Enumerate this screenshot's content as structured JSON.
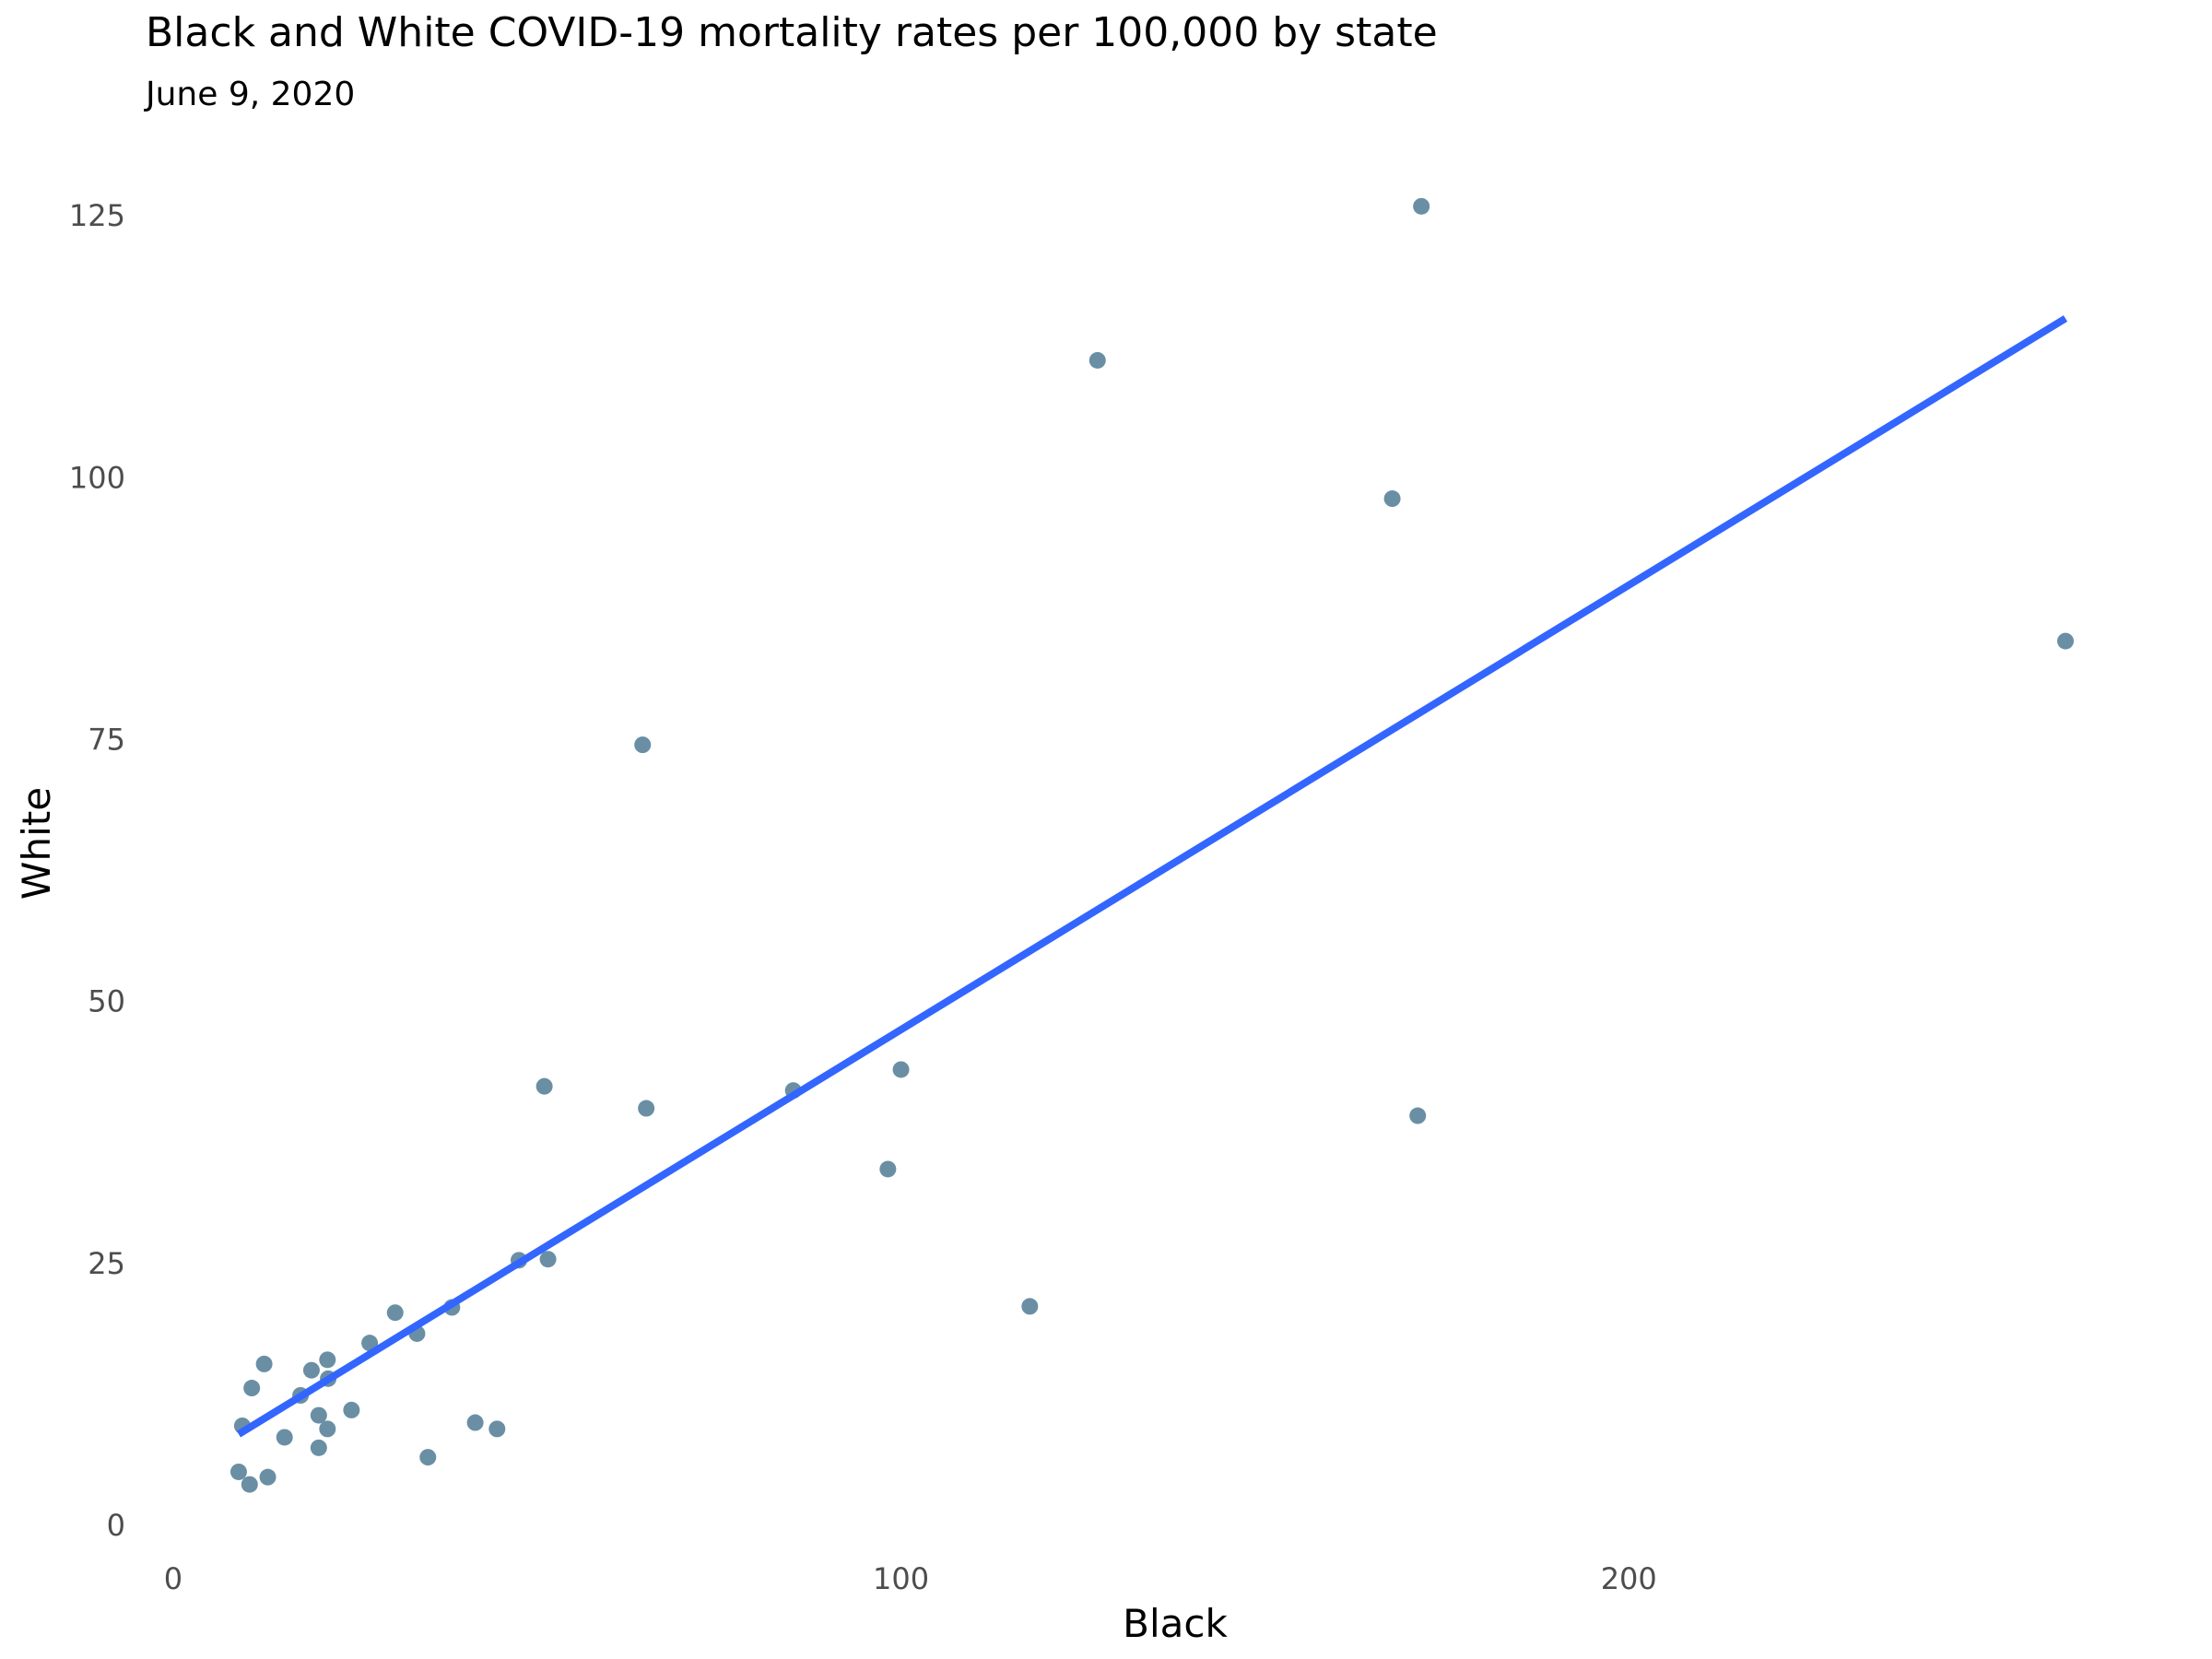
{
  "chart_data": {
    "type": "scatter",
    "title": "Black and White COVID-19 mortality rates per 100,000 by state",
    "subtitle": "June 9, 2020",
    "xlabel": "Black",
    "ylabel": "White",
    "xlim": [
      -1,
      270
    ],
    "ylim": [
      -1.5,
      128
    ],
    "x_ticks": [
      0,
      100,
      200
    ],
    "y_ticks": [
      0,
      25,
      50,
      75,
      100,
      125
    ],
    "grid": false,
    "point_color": "#6a8fa5",
    "trend_color": "#3366ff",
    "trend_line": {
      "x": [
        9,
        260
      ],
      "y": [
        8.7,
        115.2
      ]
    },
    "points": [
      {
        "x": 9,
        "y": 5.1
      },
      {
        "x": 10.5,
        "y": 3.9
      },
      {
        "x": 13,
        "y": 4.6
      },
      {
        "x": 9.5,
        "y": 9.5
      },
      {
        "x": 10.8,
        "y": 13.1
      },
      {
        "x": 12.5,
        "y": 15.4
      },
      {
        "x": 15.3,
        "y": 8.4
      },
      {
        "x": 17.5,
        "y": 12.4
      },
      {
        "x": 19,
        "y": 14.8
      },
      {
        "x": 20,
        "y": 10.5
      },
      {
        "x": 20,
        "y": 7.4
      },
      {
        "x": 21.2,
        "y": 9.2
      },
      {
        "x": 21.3,
        "y": 14.0
      },
      {
        "x": 21.2,
        "y": 15.8
      },
      {
        "x": 24.5,
        "y": 11.0
      },
      {
        "x": 27,
        "y": 17.4
      },
      {
        "x": 30.5,
        "y": 20.3
      },
      {
        "x": 33.5,
        "y": 18.3
      },
      {
        "x": 35,
        "y": 6.5
      },
      {
        "x": 38.3,
        "y": 20.8
      },
      {
        "x": 41.5,
        "y": 9.8
      },
      {
        "x": 44.5,
        "y": 9.2
      },
      {
        "x": 47.5,
        "y": 25.3
      },
      {
        "x": 51,
        "y": 41.9
      },
      {
        "x": 51.5,
        "y": 25.4
      },
      {
        "x": 64.5,
        "y": 74.5
      },
      {
        "x": 65,
        "y": 39.8
      },
      {
        "x": 85.2,
        "y": 41.5
      },
      {
        "x": 98.2,
        "y": 34.0
      },
      {
        "x": 100,
        "y": 43.5
      },
      {
        "x": 117.7,
        "y": 20.9
      },
      {
        "x": 127,
        "y": 111.2
      },
      {
        "x": 167.5,
        "y": 98.0
      },
      {
        "x": 171,
        "y": 39.1
      },
      {
        "x": 171.5,
        "y": 125.9
      },
      {
        "x": 260,
        "y": 84.4
      }
    ]
  }
}
